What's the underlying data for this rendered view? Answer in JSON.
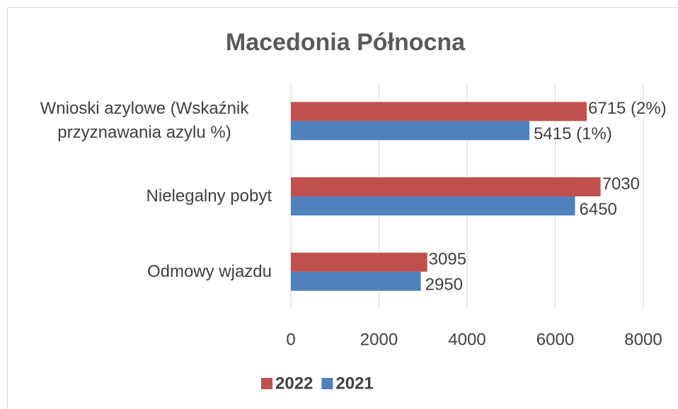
{
  "chart_data": {
    "type": "bar",
    "orientation": "horizontal",
    "title": "Macedonia Północna",
    "categories": [
      "Wnioski azylowe (Wskaźnik przyznawania azylu %)",
      "Nielegalny pobyt",
      "Odmowy wjazdu"
    ],
    "series": [
      {
        "name": "2022",
        "color": "#c0504d",
        "values": [
          6715,
          7030,
          3095
        ],
        "value_labels": [
          "6715 (2%)",
          "7030",
          "3095"
        ]
      },
      {
        "name": "2021",
        "color": "#4f81bd",
        "values": [
          5415,
          6450,
          2950
        ],
        "value_labels": [
          "5415 (1%)",
          "6450",
          "2950"
        ]
      }
    ],
    "xlim": [
      0,
      8000
    ],
    "xticks": [
      0,
      2000,
      4000,
      6000,
      8000
    ],
    "grid": true,
    "legend": "bottom"
  }
}
